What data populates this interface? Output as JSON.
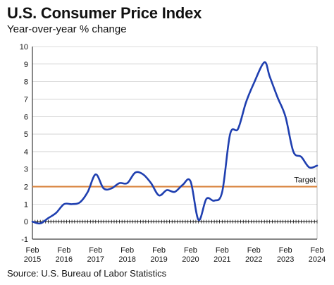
{
  "header": {
    "title": "U.S. Consumer Price Index",
    "subtitle": "Year-over-year % change"
  },
  "footer": {
    "source": "Source: U.S. Bureau of Labor Statistics"
  },
  "colors": {
    "series": "#1f3fb0",
    "target": "#d9843f",
    "axis": "#111111",
    "grid": "#bbbbbb"
  },
  "chart_data": {
    "type": "line",
    "title": "U.S. Consumer Price Index",
    "subtitle": "Year-over-year % change",
    "xlabel": "",
    "ylabel": "",
    "ylim": [
      -1,
      10
    ],
    "xlim": [
      "2015-02",
      "2024-02"
    ],
    "yticks": [
      "-1",
      "0",
      "1",
      "2",
      "3",
      "4",
      "5",
      "6",
      "7",
      "8",
      "9",
      "10"
    ],
    "xticks": [
      {
        "top": "Feb",
        "bottom": "2015",
        "date": "2015-02"
      },
      {
        "top": "Feb",
        "bottom": "2016",
        "date": "2016-02"
      },
      {
        "top": "Feb",
        "bottom": "2017",
        "date": "2017-02"
      },
      {
        "top": "Feb",
        "bottom": "2018",
        "date": "2018-02"
      },
      {
        "top": "Feb",
        "bottom": "2019",
        "date": "2019-02"
      },
      {
        "top": "Feb",
        "bottom": "2020",
        "date": "2020-02"
      },
      {
        "top": "Feb",
        "bottom": "2021",
        "date": "2021-02"
      },
      {
        "top": "Feb",
        "bottom": "2022",
        "date": "2022-02"
      },
      {
        "top": "Feb",
        "bottom": "2023",
        "date": "2023-02"
      },
      {
        "top": "Feb",
        "bottom": "2024",
        "date": "2024-02"
      }
    ],
    "grid": true,
    "reference_line": {
      "label": "Target",
      "value": 2
    },
    "series": [
      {
        "name": "",
        "x": [
          "2015-02",
          "2015-05",
          "2015-08",
          "2015-11",
          "2016-02",
          "2016-05",
          "2016-08",
          "2016-11",
          "2017-02",
          "2017-05",
          "2017-08",
          "2017-11",
          "2018-02",
          "2018-05",
          "2018-08",
          "2018-11",
          "2019-02",
          "2019-05",
          "2019-08",
          "2019-11",
          "2020-02",
          "2020-05",
          "2020-08",
          "2020-11",
          "2021-02",
          "2021-05",
          "2021-08",
          "2021-11",
          "2022-02",
          "2022-06",
          "2022-08",
          "2022-11",
          "2023-02",
          "2023-05",
          "2023-08",
          "2023-11",
          "2024-02"
        ],
        "values": [
          0.0,
          -0.1,
          0.2,
          0.5,
          1.0,
          1.0,
          1.1,
          1.7,
          2.7,
          1.9,
          1.9,
          2.2,
          2.2,
          2.8,
          2.7,
          2.2,
          1.5,
          1.8,
          1.7,
          2.1,
          2.3,
          0.1,
          1.3,
          1.2,
          1.7,
          5.0,
          5.3,
          6.8,
          7.9,
          9.1,
          8.3,
          7.1,
          6.0,
          4.0,
          3.7,
          3.1,
          3.2
        ]
      }
    ]
  }
}
